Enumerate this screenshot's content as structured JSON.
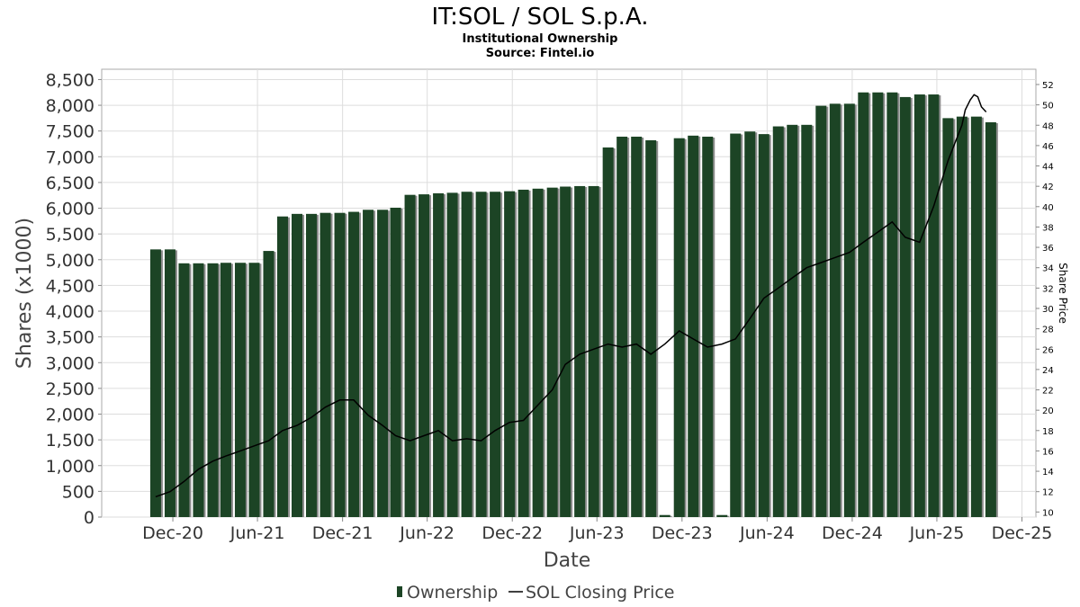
{
  "chart_data": {
    "type": "bar",
    "title": "IT:SOL / SOL S.p.A.",
    "subtitle": "Institutional Ownership",
    "source": "Source: Fintel.io",
    "xlabel": "Date",
    "ylabel": "Shares (x1000)",
    "ylabel_right": "Share Price",
    "ylim": [
      0,
      8700
    ],
    "ylim_right": [
      9.5,
      53.5
    ],
    "xlim": [
      "2020-07-01",
      "2025-12-31"
    ],
    "yticks_left": [
      {
        "value": 0,
        "label": "0"
      },
      {
        "value": 500,
        "label": "500"
      },
      {
        "value": 1000,
        "label": "1,000"
      },
      {
        "value": 1500,
        "label": "1,500"
      },
      {
        "value": 2000,
        "label": "2,000"
      },
      {
        "value": 2500,
        "label": "2,500"
      },
      {
        "value": 3000,
        "label": "3,000"
      },
      {
        "value": 3500,
        "label": "3,500"
      },
      {
        "value": 4000,
        "label": "4,000"
      },
      {
        "value": 4500,
        "label": "4,500"
      },
      {
        "value": 5000,
        "label": "5,000"
      },
      {
        "value": 5500,
        "label": "5,500"
      },
      {
        "value": 6000,
        "label": "6,000"
      },
      {
        "value": 6500,
        "label": "6,500"
      },
      {
        "value": 7000,
        "label": "7,000"
      },
      {
        "value": 7500,
        "label": "7,500"
      },
      {
        "value": 8000,
        "label": "8,000"
      },
      {
        "value": 8500,
        "label": "8,500"
      }
    ],
    "yticks_right": [
      {
        "value": 10,
        "label": "10"
      },
      {
        "value": 12,
        "label": "12"
      },
      {
        "value": 14,
        "label": "14"
      },
      {
        "value": 16,
        "label": "16"
      },
      {
        "value": 18,
        "label": "18"
      },
      {
        "value": 20,
        "label": "20"
      },
      {
        "value": 22,
        "label": "22"
      },
      {
        "value": 24,
        "label": "24"
      },
      {
        "value": 26,
        "label": "26"
      },
      {
        "value": 28,
        "label": "28"
      },
      {
        "value": 30,
        "label": "30"
      },
      {
        "value": 32,
        "label": "32"
      },
      {
        "value": 34,
        "label": "34"
      },
      {
        "value": 36,
        "label": "36"
      },
      {
        "value": 38,
        "label": "38"
      },
      {
        "value": 40,
        "label": "40"
      },
      {
        "value": 42,
        "label": "42"
      },
      {
        "value": 44,
        "label": "44"
      },
      {
        "value": 46,
        "label": "46"
      },
      {
        "value": 48,
        "label": "48"
      },
      {
        "value": 50,
        "label": "50"
      },
      {
        "value": 52,
        "label": "52"
      }
    ],
    "xticks": [
      {
        "date": "2020-12-01",
        "label": "Dec-20"
      },
      {
        "date": "2021-06-01",
        "label": "Jun-21"
      },
      {
        "date": "2021-12-01",
        "label": "Dec-21"
      },
      {
        "date": "2022-06-01",
        "label": "Jun-22"
      },
      {
        "date": "2022-12-01",
        "label": "Dec-22"
      },
      {
        "date": "2023-06-01",
        "label": "Jun-23"
      },
      {
        "date": "2023-12-01",
        "label": "Dec-23"
      },
      {
        "date": "2024-06-01",
        "label": "Jun-24"
      },
      {
        "date": "2024-12-01",
        "label": "Dec-24"
      },
      {
        "date": "2025-06-01",
        "label": "Jun-25"
      },
      {
        "date": "2025-12-01",
        "label": "Dec-25"
      }
    ],
    "colors": {
      "bar": "#1c4425",
      "bar_shadow": "#8c8c8c",
      "line": "#000000",
      "grid": "#dddddd",
      "frame": "#aaaaaa"
    },
    "legend": {
      "position": "bottom-center"
    },
    "series": [
      {
        "name": "Ownership",
        "type": "bar",
        "dates": [
          "2020-10-25",
          "2020-11-25",
          "2020-12-25",
          "2021-01-25",
          "2021-02-25",
          "2021-03-25",
          "2021-04-25",
          "2021-05-25",
          "2021-06-25",
          "2021-07-25",
          "2021-08-25",
          "2021-09-25",
          "2021-10-25",
          "2021-11-25",
          "2021-12-25",
          "2022-01-25",
          "2022-02-25",
          "2022-03-25",
          "2022-04-25",
          "2022-05-25",
          "2022-06-25",
          "2022-07-25",
          "2022-08-25",
          "2022-09-25",
          "2022-10-25",
          "2022-11-25",
          "2022-12-25",
          "2023-01-25",
          "2023-02-25",
          "2023-03-25",
          "2023-04-25",
          "2023-05-25",
          "2023-06-25",
          "2023-07-25",
          "2023-08-25",
          "2023-09-25",
          "2023-10-25",
          "2023-11-25",
          "2023-12-25",
          "2024-01-25",
          "2024-02-25",
          "2024-03-25",
          "2024-04-25",
          "2024-05-25",
          "2024-06-25",
          "2024-07-25",
          "2024-08-25",
          "2024-09-25",
          "2024-10-25",
          "2024-11-25",
          "2024-12-25",
          "2025-01-25",
          "2025-02-25",
          "2025-03-25",
          "2025-04-25",
          "2025-05-25",
          "2025-06-25",
          "2025-07-25",
          "2025-08-25",
          "2025-09-25"
        ],
        "values": [
          5200,
          5200,
          4930,
          4930,
          4930,
          4940,
          4940,
          4940,
          5170,
          5840,
          5890,
          5890,
          5910,
          5910,
          5930,
          5970,
          5970,
          6010,
          6260,
          6270,
          6290,
          6300,
          6320,
          6320,
          6320,
          6330,
          6360,
          6380,
          6400,
          6420,
          6430,
          6430,
          7180,
          7390,
          7390,
          7320,
          40,
          7360,
          7410,
          7390,
          40,
          7450,
          7490,
          7440,
          7590,
          7620,
          7620,
          7990,
          8030,
          8030,
          8250,
          8250,
          8250,
          8160,
          8210,
          8210,
          7750,
          7780,
          7780,
          7670
        ]
      },
      {
        "name": "SOL Closing Price",
        "type": "line",
        "points": [
          [
            "2020-10-25",
            11.5
          ],
          [
            "2020-11-25",
            12.0
          ],
          [
            "2020-12-25",
            13.0
          ],
          [
            "2021-01-25",
            14.2
          ],
          [
            "2021-02-25",
            15.0
          ],
          [
            "2021-03-25",
            15.5
          ],
          [
            "2021-04-25",
            16.0
          ],
          [
            "2021-05-25",
            16.5
          ],
          [
            "2021-06-25",
            17.0
          ],
          [
            "2021-07-25",
            18.0
          ],
          [
            "2021-08-25",
            18.5
          ],
          [
            "2021-09-25",
            19.3
          ],
          [
            "2021-10-25",
            20.3
          ],
          [
            "2021-11-25",
            21.0
          ],
          [
            "2021-12-25",
            21.0
          ],
          [
            "2022-01-25",
            19.5
          ],
          [
            "2022-02-25",
            18.5
          ],
          [
            "2022-03-25",
            17.5
          ],
          [
            "2022-04-25",
            17.0
          ],
          [
            "2022-05-25",
            17.5
          ],
          [
            "2022-06-25",
            18.0
          ],
          [
            "2022-07-25",
            17.0
          ],
          [
            "2022-08-25",
            17.2
          ],
          [
            "2022-09-25",
            17.0
          ],
          [
            "2022-10-25",
            18.0
          ],
          [
            "2022-11-25",
            18.8
          ],
          [
            "2022-12-25",
            19.0
          ],
          [
            "2023-01-25",
            20.5
          ],
          [
            "2023-02-25",
            22.0
          ],
          [
            "2023-03-25",
            24.5
          ],
          [
            "2023-04-25",
            25.5
          ],
          [
            "2023-05-25",
            26.0
          ],
          [
            "2023-06-25",
            26.5
          ],
          [
            "2023-07-25",
            26.2
          ],
          [
            "2023-08-25",
            26.5
          ],
          [
            "2023-09-25",
            25.5
          ],
          [
            "2023-10-25",
            26.5
          ],
          [
            "2023-11-25",
            27.8
          ],
          [
            "2023-12-25",
            27.0
          ],
          [
            "2024-01-25",
            26.2
          ],
          [
            "2024-02-25",
            26.5
          ],
          [
            "2024-03-25",
            27.0
          ],
          [
            "2024-04-25",
            29.0
          ],
          [
            "2024-05-25",
            31.0
          ],
          [
            "2024-06-25",
            32.0
          ],
          [
            "2024-07-25",
            33.0
          ],
          [
            "2024-08-25",
            34.0
          ],
          [
            "2024-09-25",
            34.5
          ],
          [
            "2024-10-25",
            35.0
          ],
          [
            "2024-11-25",
            35.5
          ],
          [
            "2024-12-25",
            36.5
          ],
          [
            "2025-01-25",
            37.5
          ],
          [
            "2025-02-25",
            38.5
          ],
          [
            "2025-03-25",
            37.0
          ],
          [
            "2025-04-25",
            36.5
          ],
          [
            "2025-05-25",
            40.0
          ],
          [
            "2025-06-25",
            44.5
          ],
          [
            "2025-07-25",
            48.0
          ],
          [
            "2025-08-01",
            49.5
          ],
          [
            "2025-08-12",
            50.5
          ],
          [
            "2025-08-20",
            51.0
          ],
          [
            "2025-08-28",
            50.8
          ],
          [
            "2025-09-05",
            49.8
          ],
          [
            "2025-09-15",
            49.3
          ]
        ]
      }
    ]
  }
}
